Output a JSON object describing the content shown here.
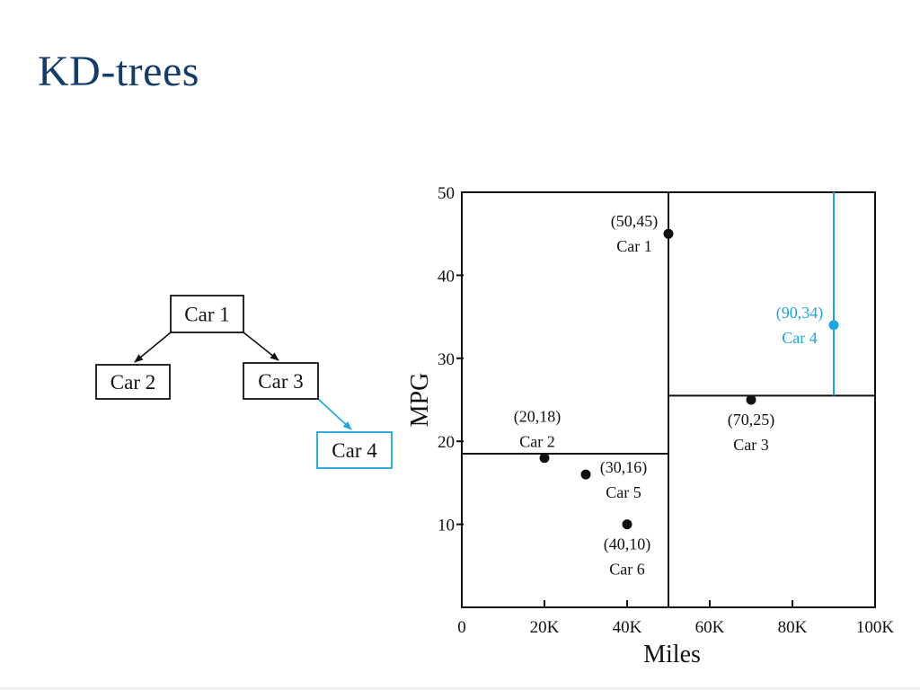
{
  "title": "KD-trees",
  "tree": {
    "nodes": [
      {
        "id": "car1",
        "label": "Car 1",
        "highlight": false
      },
      {
        "id": "car2",
        "label": "Car 2",
        "highlight": false
      },
      {
        "id": "car3",
        "label": "Car 3",
        "highlight": false
      },
      {
        "id": "car4",
        "label": "Car 4",
        "highlight": true
      }
    ],
    "edges": [
      {
        "from": "car1",
        "to": "car2",
        "highlight": false
      },
      {
        "from": "car1",
        "to": "car3",
        "highlight": false
      },
      {
        "from": "car3",
        "to": "car4",
        "highlight": true
      }
    ]
  },
  "colors": {
    "highlight": "#1aa6df",
    "default": "#111111",
    "title": "#123c6b"
  },
  "chart_data": {
    "type": "scatter",
    "xlabel": "Miles",
    "ylabel": "MPG",
    "xlim": [
      0,
      100
    ],
    "ylim": [
      0,
      50
    ],
    "x_ticks": [
      {
        "value": 0,
        "label": "0"
      },
      {
        "value": 20,
        "label": "20K"
      },
      {
        "value": 40,
        "label": "40K"
      },
      {
        "value": 60,
        "label": "60K"
      },
      {
        "value": 80,
        "label": "80K"
      },
      {
        "value": 100,
        "label": "100K"
      }
    ],
    "y_ticks": [
      {
        "value": 10,
        "label": "10"
      },
      {
        "value": 20,
        "label": "20"
      },
      {
        "value": 30,
        "label": "30"
      },
      {
        "value": 40,
        "label": "40"
      },
      {
        "value": 50,
        "label": "50"
      }
    ],
    "points": [
      {
        "name": "Car 1",
        "x": 50,
        "y": 45,
        "coord": "(50,45)",
        "highlight": false,
        "label_pos": "left"
      },
      {
        "name": "Car 2",
        "x": 20,
        "y": 18,
        "coord": "(20,18)",
        "highlight": false,
        "label_pos": "above"
      },
      {
        "name": "Car 3",
        "x": 70,
        "y": 25,
        "coord": "(70,25)",
        "highlight": false,
        "label_pos": "below"
      },
      {
        "name": "Car 4",
        "x": 90,
        "y": 34,
        "coord": "(90,34)",
        "highlight": true,
        "label_pos": "left"
      },
      {
        "name": "Car 5",
        "x": 30,
        "y": 16,
        "coord": "(30,16)",
        "highlight": false,
        "label_pos": "right"
      },
      {
        "name": "Car 6",
        "x": 40,
        "y": 10,
        "coord": "(40,10)",
        "highlight": false,
        "label_pos": "below"
      }
    ],
    "splits": [
      {
        "axis": "x",
        "value": 50,
        "range": [
          0,
          50
        ],
        "highlight": false
      },
      {
        "axis": "y",
        "value": 18.5,
        "range": [
          0,
          50
        ],
        "highlight": false
      },
      {
        "axis": "y",
        "value": 25.5,
        "range": [
          50,
          100
        ],
        "highlight": false
      },
      {
        "axis": "x",
        "value": 90,
        "range": [
          25.5,
          50
        ],
        "highlight": true
      }
    ]
  }
}
